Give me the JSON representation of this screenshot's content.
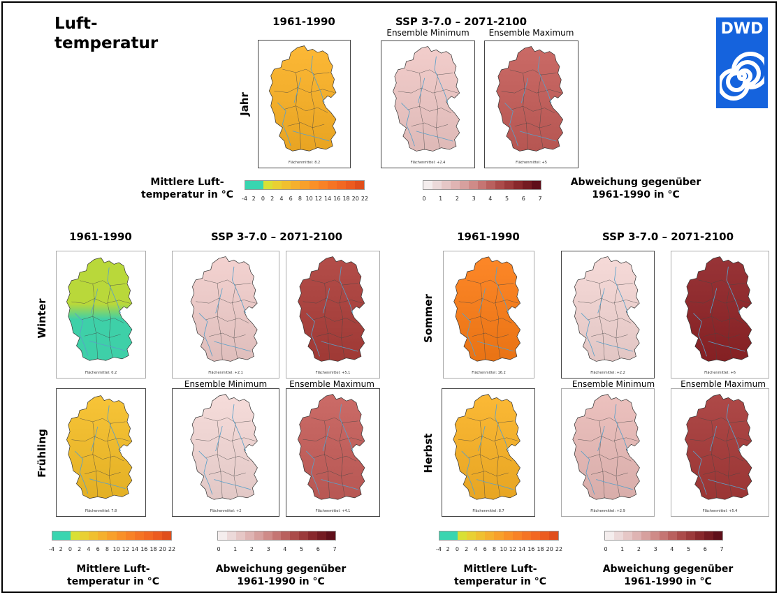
{
  "title": "Luft-\ntemperatur",
  "logo": {
    "text": "DWD"
  },
  "top": {
    "hdr_ref": "1961-1990",
    "hdr_ssp": "SSP 3-7.0  –  2071-2100",
    "sub_min": "Ensemble Minimum",
    "sub_max": "Ensemble Maximum",
    "row_label": "Jahr",
    "means": [
      "Flächenmittel: 8.2",
      "Flächenmittel: +2.4",
      "Flächenmittel: +5"
    ]
  },
  "left": {
    "hdr_ref": "1961-1990",
    "hdr_ssp": "SSP 3-7.0  –  2071-2100",
    "sub_min": "Ensemble Minimum",
    "sub_max": "Ensemble Maximum",
    "row1_label": "Winter",
    "row2_label": "Frühling",
    "means_row1": [
      "Flächenmittel: 0.2",
      "Flächenmittel: +2.1",
      "Flächenmittel: +5.1"
    ],
    "means_row2": [
      "Flächenmittel: 7.8",
      "Flächenmittel: +2",
      "Flächenmittel: +4.1"
    ]
  },
  "right": {
    "hdr_ref": "1961-1990",
    "hdr_ssp": "SSP 3-7.0  –  2071-2100",
    "sub_min": "Ensemble Minimum",
    "sub_max": "Ensemble Maximum",
    "row1_label": "Sommer",
    "row2_label": "Herbst",
    "means_row1": [
      "Flächenmittel: 16.2",
      "Flächenmittel: +2.2",
      "Flächenmittel: +6"
    ],
    "means_row2": [
      "Flächenmittel: 8.7",
      "Flächenmittel: +2.9",
      "Flächenmittel: +5.4"
    ]
  },
  "legend_temp": {
    "label": "Mittlere Luft-\ntemperatur in °C",
    "ticks": [
      "-4",
      "2",
      "0",
      "2",
      "4",
      "6",
      "8",
      "10",
      "12",
      "14",
      "16",
      "18",
      "20",
      "22"
    ],
    "colors": [
      "#39d5b0",
      "#39d5b0",
      "#d9e035",
      "#e9d033",
      "#f0c030",
      "#f5b02e",
      "#f8a02b",
      "#f99028",
      "#f88226",
      "#f57424",
      "#f26822",
      "#ec5b1f",
      "#e04e1b"
    ]
  },
  "legend_dev": {
    "label": "Abweichung gegenüber\n1961-1990 in °C",
    "ticks": [
      "0",
      "1",
      "2",
      "3",
      "4",
      "5",
      "6",
      "7"
    ],
    "colors": [
      "#f4eded",
      "#ecd9d9",
      "#e6c7c6",
      "#dfb4b3",
      "#d7a09e",
      "#cf8b88",
      "#c57573",
      "#b9605e",
      "#ab4b4a",
      "#9b3a3b",
      "#88282c",
      "#741b22",
      "#5f0f1a"
    ]
  },
  "map_colors": {
    "jahr_ref": "#f4b02e",
    "jahr_min": "#e8c3c1",
    "jahr_max": "#c0605c",
    "winter_ref": "#b9d83a",
    "winter_low": "#3ed0a8",
    "winter_min": "#e9c8c6",
    "winter_max": "#a9433f",
    "fruehling_ref": "#efbc30",
    "fruehling_min": "#ecd2d0",
    "fruehling_max": "#c1615d",
    "sommer_ref": "#f57f20",
    "sommer_min": "#ecd0ce",
    "sommer_max": "#8e2a2d",
    "herbst_ref": "#f3b12e",
    "herbst_min": "#e2b7b4",
    "herbst_max": "#a43f3e"
  }
}
